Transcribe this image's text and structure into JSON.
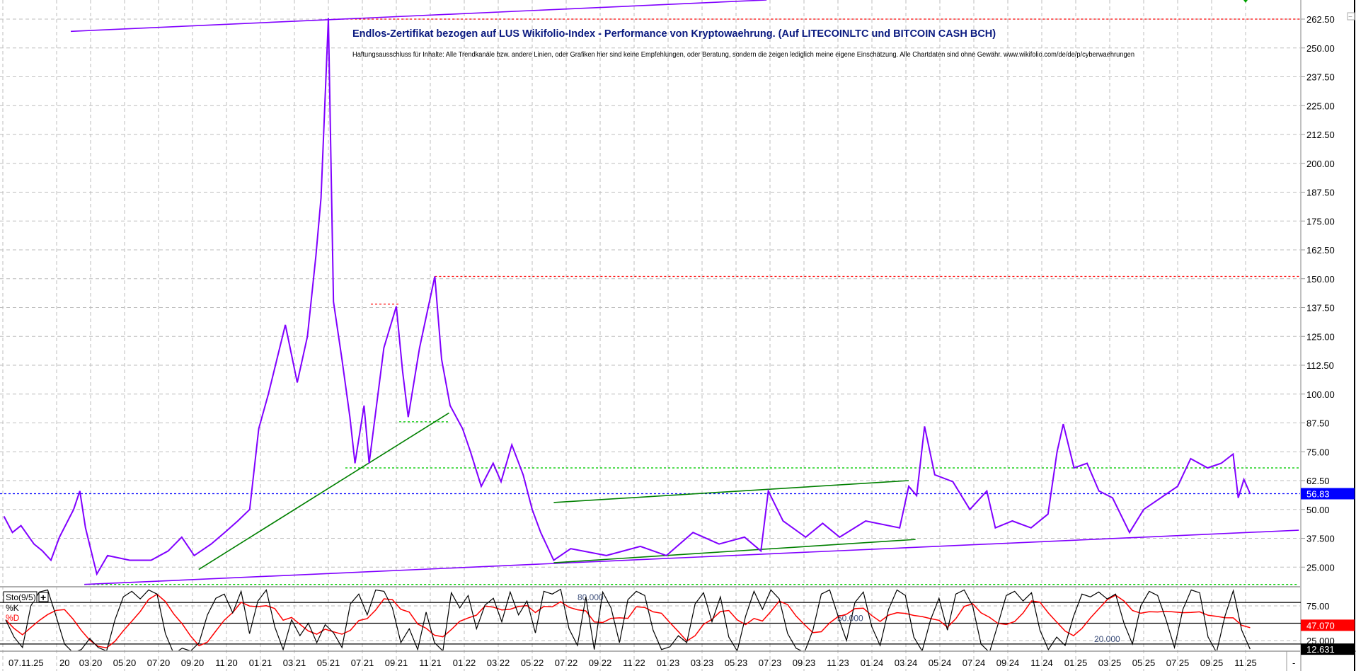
{
  "chart_data": [
    {
      "type": "line",
      "title": "Endlos-Zertifikat bezogen auf LUS Wikifolio-Index - Performance von Kryptowaehrung. (Auf LITECOINLTC und BITCOIN CASH BCH)",
      "subtitle": "Haftungsausschluss für Inhalte: Alle Trendkanäle bzw. andere Linien, oder Grafiken hier sind keine Empfehlungen, oder Beratung, sondern die zeigen lediglich meine eigene Einschätzung. Alle Chartdaten sind ohne Gewähr.  www.wikifolio.com/de/de/p/cyberwaehrungen",
      "ylim": [
        16.7,
        270.8
      ],
      "grid": true,
      "y_ticks": [
        "262.50",
        "250.00",
        "237.50",
        "225.00",
        "212.50",
        "200.00",
        "187.50",
        "175.00",
        "162.50",
        "150.00",
        "137.50",
        "125.00",
        "112.50",
        "100.00",
        "87.50",
        "75.00",
        "62.50",
        "50.00",
        "37.500",
        "25.000"
      ],
      "last_value_label": "56.83",
      "colors": {
        "price": "#8000ff",
        "last": "#0000ff",
        "support": "#00cc00",
        "resistance": "#ff0000",
        "trend_green": "#008000",
        "trend_purple": "#8000ff"
      },
      "series": [
        {
          "x": [
            "2019-09-28",
            "2019-10-13",
            "2019-10-28",
            "2019-11-21",
            "2019-12-06",
            "2019-12-21",
            "2020-01-06",
            "2020-02-01",
            "2020-02-12",
            "2020-02-22",
            "2020-03-12",
            "2020-04-01",
            "2020-05-10",
            "2020-06-18",
            "2020-07-18",
            "2020-08-12",
            "2020-09-04",
            "2020-10-04",
            "2020-10-28",
            "2020-11-21",
            "2020-12-12",
            "2020-12-28",
            "2021-01-15",
            "2021-02-15",
            "2021-03-06",
            "2021-03-24",
            "2021-04-09",
            "2021-04-18",
            "2021-05-01",
            "2021-05-10",
            "2021-05-25",
            "2021-06-09",
            "2021-06-18",
            "2021-07-04",
            "2021-07-13",
            "2021-08-09",
            "2021-09-01",
            "2021-09-12",
            "2021-09-22",
            "2021-10-12",
            "2021-11-09",
            "2021-11-21",
            "2021-12-06",
            "2021-12-28",
            "2022-01-12",
            "2022-02-01",
            "2022-02-22",
            "2022-03-06",
            "2022-03-25",
            "2022-04-15",
            "2022-05-01",
            "2022-05-16",
            "2022-06-09",
            "2022-07-09",
            "2022-09-12",
            "2022-11-12",
            "2022-12-28",
            "2023-02-15",
            "2023-04-01",
            "2023-05-16",
            "2023-06-15",
            "2023-06-28",
            "2023-07-24",
            "2023-09-04",
            "2023-10-04",
            "2023-11-04",
            "2023-12-20",
            "2024-02-20",
            "2024-03-06",
            "2024-03-20",
            "2024-04-04",
            "2024-04-22",
            "2024-05-24",
            "2024-06-24",
            "2024-07-24",
            "2024-08-09",
            "2024-09-09",
            "2024-10-12",
            "2024-11-12",
            "2024-11-28",
            "2024-12-09",
            "2024-12-28",
            "2025-01-21",
            "2025-02-12",
            "2025-03-06",
            "2025-04-06",
            "2025-05-01",
            "2025-06-01",
            "2025-07-01",
            "2025-07-24",
            "2025-08-24",
            "2025-09-18",
            "2025-10-09",
            "2025-10-18",
            "2025-10-28",
            "2025-11-09"
          ],
          "y": [
            47,
            40,
            43,
            35,
            32,
            28,
            38,
            50,
            58,
            42,
            22,
            30,
            28,
            28,
            32,
            38,
            30,
            35,
            40,
            45,
            50,
            85,
            100,
            130,
            105,
            125,
            160,
            185,
            263,
            140,
            115,
            90,
            70,
            95,
            70,
            120,
            138,
            110,
            90,
            120,
            151,
            115,
            95,
            85,
            75,
            60,
            70,
            62,
            78,
            65,
            50,
            40,
            28,
            33,
            30,
            34,
            30,
            40,
            35,
            38,
            32,
            58,
            45,
            38,
            44,
            38,
            45,
            42,
            60,
            56,
            86,
            65,
            62,
            50,
            58,
            42,
            45,
            42,
            48,
            75,
            87,
            68,
            70,
            58,
            55,
            40,
            50,
            55,
            60,
            72,
            68,
            70,
            74,
            55,
            63,
            56.83
          ]
        }
      ],
      "annotations": {
        "horizontal_lines": [
          {
            "value": 262.5,
            "from": "2021-05-10",
            "to": "end",
            "color": "#ff0000",
            "style": "dotted"
          },
          {
            "value": 151,
            "from": "2021-11-09",
            "to": "end",
            "color": "#ff0000",
            "style": "dotted"
          },
          {
            "value": 139,
            "from": "2021-07-16",
            "to": "2021-09-06",
            "color": "#ff0000",
            "style": "dotted"
          },
          {
            "value": 88,
            "from": "2021-09-06",
            "to": "2021-12-06",
            "color": "#00cc00",
            "style": "dotted"
          },
          {
            "value": 68,
            "from": "2021-06-01",
            "to": "2026-02-05",
            "color": "#00cc00",
            "style": "dotted"
          },
          {
            "value": 17.5,
            "from": "2020-02-20",
            "to": "2026-02-05",
            "color": "#00cc00",
            "style": "dotted"
          },
          {
            "value": 56.83,
            "from": "start",
            "to": "end",
            "color": "#0000ff",
            "style": "dotted"
          }
        ],
        "trend_lines": [
          {
            "from": [
              "2020-01-26",
              257.2
            ],
            "to": [
              "2023-06-25",
              270.8
            ],
            "color": "#8000ff"
          },
          {
            "from": [
              "2020-02-20",
              17.5
            ],
            "to": [
              "2026-02-05",
              41
            ],
            "color": "#8000ff"
          },
          {
            "from": [
              "2020-09-12",
              24
            ],
            "to": [
              "2021-12-04",
              91.8
            ],
            "color": "#008000"
          },
          {
            "from": [
              "2022-06-09",
              53
            ],
            "to": [
              "2024-03-06",
              62.5
            ],
            "color": "#008000"
          },
          {
            "from": [
              "2022-06-09",
              26.9
            ],
            "to": [
              "2024-03-18",
              37
            ],
            "color": "#008000"
          }
        ]
      }
    },
    {
      "type": "line",
      "title": "Sto(9/5)",
      "legend": [
        "%K",
        "%D"
      ],
      "ylim": [
        0,
        100
      ],
      "levels": [
        {
          "value": 80,
          "label": "80.000"
        },
        {
          "value": 50,
          "label": "50.000"
        },
        {
          "value": 20,
          "label": "20.000"
        }
      ],
      "y_ticks": [
        "75.00",
        "25.000"
      ],
      "grid_values": [
        75,
        25
      ],
      "readouts": {
        "d": "47.070",
        "k": "12.631"
      },
      "colors": {
        "k": "#000000",
        "d": "#ff0000"
      },
      "x_range": [
        "2019-10-01",
        "2025-11-09"
      ],
      "k": [
        55,
        30,
        15,
        75,
        95,
        98,
        60,
        20,
        8,
        12,
        28,
        15,
        10,
        55,
        88,
        96,
        85,
        98,
        92,
        35,
        6,
        14,
        10,
        22,
        62,
        86,
        92,
        65,
        96,
        35,
        82,
        98,
        45,
        12,
        55,
        32,
        50,
        22,
        48,
        36,
        15,
        78,
        92,
        62,
        98,
        96,
        72,
        22,
        42,
        12,
        66,
        22,
        10,
        94,
        72,
        90,
        42,
        76,
        86,
        52,
        95,
        62,
        82,
        36,
        96,
        92,
        99,
        42,
        18,
        88,
        12,
        95,
        72,
        22,
        84,
        96,
        90,
        40,
        12,
        16,
        32,
        22,
        78,
        94,
        52,
        88,
        30,
        10,
        60,
        96,
        70,
        98,
        85,
        35,
        14,
        8,
        40,
        92,
        98,
        60,
        25,
        80,
        95,
        45,
        18,
        70,
        98,
        90,
        30,
        10,
        55,
        86,
        40,
        92,
        98,
        75,
        20,
        8,
        48,
        90,
        96,
        82,
        94,
        40,
        12,
        30,
        18,
        60,
        92,
        88,
        95,
        85,
        92,
        50,
        20,
        75,
        96,
        90,
        55,
        15,
        70,
        98,
        94,
        30,
        8,
        60,
        97,
        40,
        12.631
      ]
    }
  ],
  "x_axis": {
    "labels": [
      "07.11.25",
      "20",
      "03 20",
      "05 20",
      "07 20",
      "09 20",
      "11 20",
      "01 21",
      "03 21",
      "05 21",
      "07 21",
      "09 21",
      "11 21",
      "01 22",
      "03 22",
      "05 22",
      "07 22",
      "09 22",
      "11 22",
      "01 23",
      "03 23",
      "05 23",
      "07 23",
      "09 23",
      "11 23",
      "01 24",
      "03 24",
      "05 24",
      "07 24",
      "09 24",
      "11 24",
      "01 25",
      "03 25",
      "05 25",
      "07 25",
      "09 25",
      "11 25"
    ],
    "end_marker": "-"
  },
  "indicator_panel": {
    "label": "Sto(9/5)",
    "add_button": "+",
    "k_label": "%K",
    "d_label": "%D"
  },
  "collapse_button": "−"
}
